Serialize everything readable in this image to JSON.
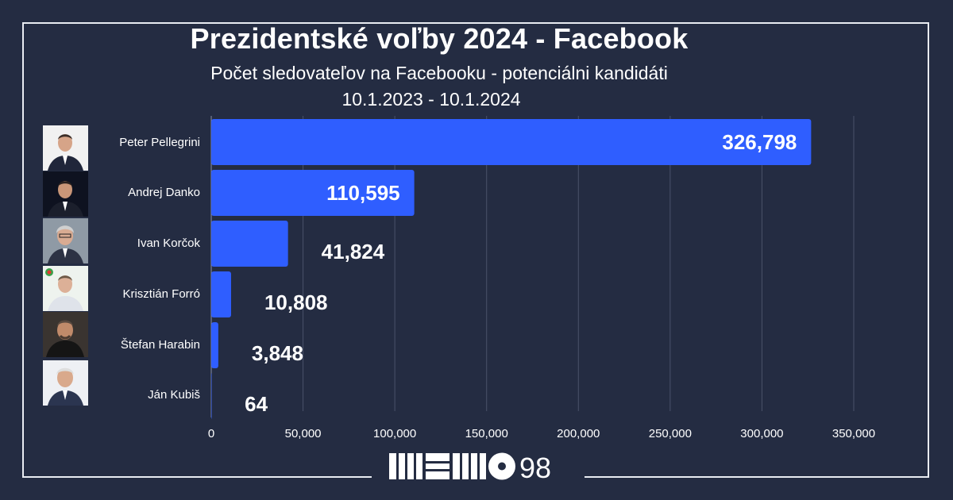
{
  "title": "Prezidentské voľby 2024 - Facebook",
  "subtitle": "Počet sledovateľov na Facebooku - potenciálni kandidáti",
  "date_range": "10.1.2023 - 10.1.2024",
  "logo": {
    "text": "98"
  },
  "colors": {
    "background": "#242c42",
    "bar": "#2f5eff",
    "frame": "#e9ecf2",
    "grid": "#4a526a"
  },
  "chart_data": {
    "type": "bar",
    "orientation": "horizontal",
    "categories": [
      "Peter Pellegrini",
      "Andrej Danko",
      "Ivan Korčok",
      "Krisztián Forró",
      "Štefan Harabin",
      "Ján Kubiš"
    ],
    "values": [
      326798,
      110595,
      41824,
      10808,
      3848,
      64
    ],
    "value_labels": [
      "326,798",
      "110,595",
      "41,824",
      "10,808",
      "3,848",
      "64"
    ],
    "x_ticks": [
      0,
      50000,
      100000,
      150000,
      200000,
      250000,
      300000,
      350000
    ],
    "x_tick_labels": [
      "0",
      "50,000",
      "100,000",
      "150,000",
      "200,000",
      "250,000",
      "300,000",
      "350,000"
    ],
    "xlim": [
      0,
      350000
    ],
    "grid": "vertical",
    "legend": "none"
  }
}
